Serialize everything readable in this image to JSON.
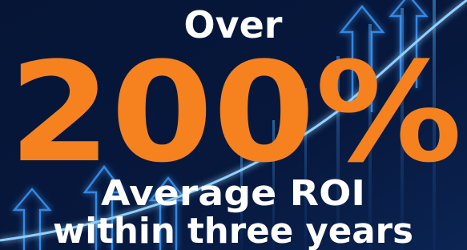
{
  "headline": {
    "lead": "Over",
    "figure": "200%",
    "caption": [
      "Average ROI",
      "within three years"
    ]
  }
}
